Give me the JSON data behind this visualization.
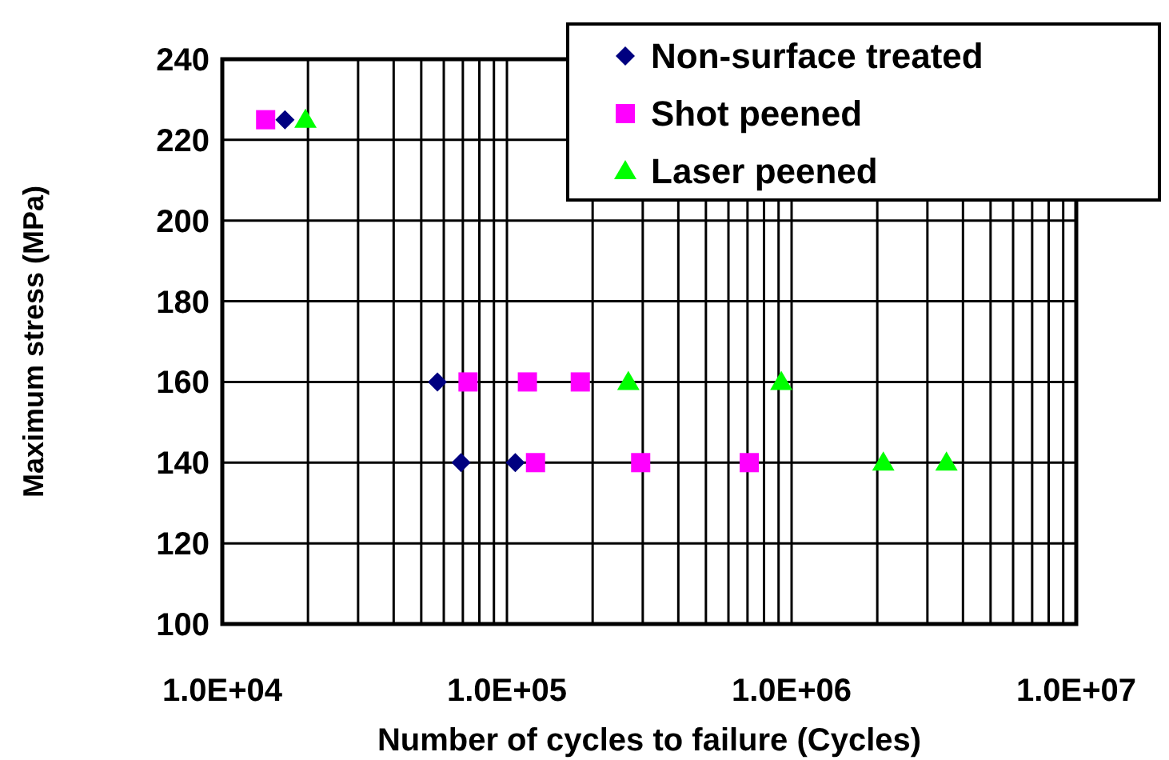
{
  "chart_data": {
    "type": "scatter",
    "xlabel": "Number of cycles to failure (Cycles)",
    "ylabel": "Maximum stress (MPa)",
    "log": "x",
    "xlim": [
      10000,
      10000000
    ],
    "xticks": [
      {
        "value": 10000,
        "label": "1.0E+04"
      },
      {
        "value": 100000,
        "label": "1.0E+05"
      },
      {
        "value": 1000000,
        "label": "1.0E+06"
      },
      {
        "value": 10000000,
        "label": "1.0E+07"
      }
    ],
    "ylim": [
      100,
      240
    ],
    "yticks": [
      100,
      120,
      140,
      160,
      180,
      200,
      220,
      240
    ],
    "grid": true,
    "legend": "top right",
    "series": [
      {
        "name": "Non-surface treated",
        "color": "#000080",
        "marker": "diamond",
        "x": [
          16600,
          57000,
          69000,
          107000
        ],
        "values": [
          225,
          160,
          140,
          140
        ]
      },
      {
        "name": "Shot peened",
        "color": "#ff00ff",
        "marker": "square",
        "x": [
          14200,
          73000,
          118000,
          181000,
          126000,
          295000,
          710000
        ],
        "values": [
          225,
          160,
          160,
          160,
          140,
          140,
          140
        ]
      },
      {
        "name": "Laser peened",
        "color": "#00ff00",
        "marker": "triangle",
        "x": [
          19600,
          267000,
          920000,
          2100000,
          3500000
        ],
        "values": [
          225,
          160,
          160,
          140,
          140
        ]
      }
    ]
  }
}
